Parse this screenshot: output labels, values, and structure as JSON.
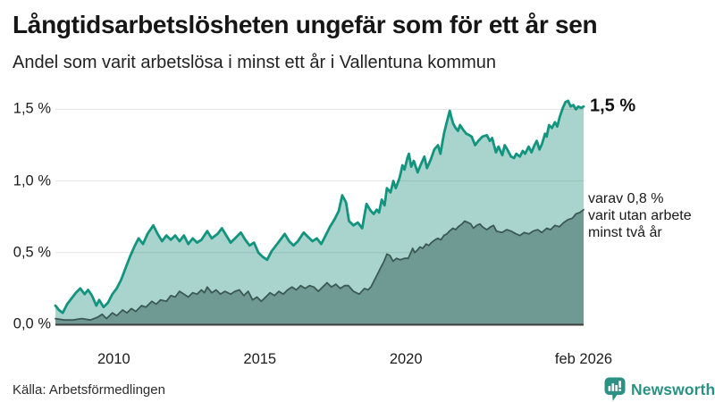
{
  "header": {
    "title": "Långtidsarbetslösheten ungefär som för ett år sen",
    "subtitle": "Andel som varit arbetslösa i minst ett år i Vallentuna kommun"
  },
  "footer": {
    "source": "Källa: Arbetsförmedlingen",
    "brand": "Newsworthy"
  },
  "colors": {
    "accent_teal": "#12947E",
    "light_fill": "#A9D4CD",
    "dark_line": "#3C5954",
    "dark_fill": "#6F9A93",
    "gridline": "rgba(60,60,60,0.14)",
    "baseline": "#3B3B3B",
    "brand_teal": "#2B9183"
  },
  "chart_data": {
    "type": "area",
    "title": "Långtidsarbetslösheten ungefär som för ett år sen",
    "subtitle": "Andel som varit arbetslösa i minst ett år i Vallentuna kommun",
    "unit": "%",
    "grid": true,
    "legend_position": "none",
    "x_domain": [
      2008.0,
      2026.083
    ],
    "y_domain": [
      0,
      1.65
    ],
    "y_ticks": [
      {
        "value": 0.0,
        "label": "0,0 %"
      },
      {
        "value": 0.5,
        "label": "0,5 %"
      },
      {
        "value": 1.0,
        "label": "1,0 %"
      },
      {
        "value": 1.5,
        "label": "1,5 %"
      }
    ],
    "x_ticks": [
      {
        "value": 2010,
        "label": "2010"
      },
      {
        "value": 2015,
        "label": "2015"
      },
      {
        "value": 2020,
        "label": "2020"
      },
      {
        "value": 2026.083,
        "label": "feb 2026"
      }
    ],
    "series": [
      {
        "name": "Andel som varit arbetslösa i minst ett år",
        "color": "#12947E",
        "fill": "#A9D4CD",
        "end_label": "1,5 %",
        "end_value": 1.5,
        "points": [
          [
            2008.0,
            0.13
          ],
          [
            2008.12,
            0.1
          ],
          [
            2008.25,
            0.08
          ],
          [
            2008.4,
            0.14
          ],
          [
            2008.55,
            0.18
          ],
          [
            2008.7,
            0.22
          ],
          [
            2008.85,
            0.25
          ],
          [
            2009.0,
            0.21
          ],
          [
            2009.12,
            0.24
          ],
          [
            2009.25,
            0.2
          ],
          [
            2009.4,
            0.13
          ],
          [
            2009.5,
            0.17
          ],
          [
            2009.65,
            0.12
          ],
          [
            2009.8,
            0.15
          ],
          [
            2009.95,
            0.21
          ],
          [
            2010.1,
            0.25
          ],
          [
            2010.25,
            0.31
          ],
          [
            2010.4,
            0.39
          ],
          [
            2010.55,
            0.47
          ],
          [
            2010.7,
            0.54
          ],
          [
            2010.85,
            0.6
          ],
          [
            2011.0,
            0.56
          ],
          [
            2011.15,
            0.63
          ],
          [
            2011.35,
            0.69
          ],
          [
            2011.5,
            0.63
          ],
          [
            2011.65,
            0.58
          ],
          [
            2011.8,
            0.62
          ],
          [
            2011.95,
            0.59
          ],
          [
            2012.1,
            0.62
          ],
          [
            2012.25,
            0.58
          ],
          [
            2012.4,
            0.62
          ],
          [
            2012.55,
            0.56
          ],
          [
            2012.7,
            0.6
          ],
          [
            2012.85,
            0.57
          ],
          [
            2013.0,
            0.59
          ],
          [
            2013.2,
            0.65
          ],
          [
            2013.35,
            0.6
          ],
          [
            2013.55,
            0.63
          ],
          [
            2013.7,
            0.67
          ],
          [
            2013.85,
            0.62
          ],
          [
            2014.0,
            0.57
          ],
          [
            2014.2,
            0.61
          ],
          [
            2014.35,
            0.64
          ],
          [
            2014.5,
            0.59
          ],
          [
            2014.65,
            0.55
          ],
          [
            2014.8,
            0.57
          ],
          [
            2014.95,
            0.5
          ],
          [
            2015.1,
            0.47
          ],
          [
            2015.25,
            0.45
          ],
          [
            2015.4,
            0.51
          ],
          [
            2015.55,
            0.55
          ],
          [
            2015.7,
            0.59
          ],
          [
            2015.85,
            0.63
          ],
          [
            2016.0,
            0.58
          ],
          [
            2016.15,
            0.55
          ],
          [
            2016.3,
            0.58
          ],
          [
            2016.5,
            0.64
          ],
          [
            2016.65,
            0.61
          ],
          [
            2016.8,
            0.58
          ],
          [
            2016.95,
            0.6
          ],
          [
            2017.1,
            0.56
          ],
          [
            2017.25,
            0.62
          ],
          [
            2017.4,
            0.68
          ],
          [
            2017.55,
            0.73
          ],
          [
            2017.7,
            0.79
          ],
          [
            2017.82,
            0.9
          ],
          [
            2017.95,
            0.85
          ],
          [
            2018.05,
            0.72
          ],
          [
            2018.2,
            0.69
          ],
          [
            2018.35,
            0.71
          ],
          [
            2018.5,
            0.67
          ],
          [
            2018.65,
            0.84
          ],
          [
            2018.8,
            0.79
          ],
          [
            2018.9,
            0.77
          ],
          [
            2019.0,
            0.8
          ],
          [
            2019.08,
            0.78
          ],
          [
            2019.17,
            0.87
          ],
          [
            2019.27,
            0.83
          ],
          [
            2019.35,
            0.95
          ],
          [
            2019.47,
            0.92
          ],
          [
            2019.57,
            1.0
          ],
          [
            2019.65,
            0.95
          ],
          [
            2019.78,
            1.02
          ],
          [
            2019.88,
            1.11
          ],
          [
            2019.95,
            1.08
          ],
          [
            2020.05,
            1.16
          ],
          [
            2020.1,
            1.19
          ],
          [
            2020.18,
            1.1
          ],
          [
            2020.27,
            1.14
          ],
          [
            2020.4,
            1.06
          ],
          [
            2020.5,
            1.11
          ],
          [
            2020.63,
            1.17
          ],
          [
            2020.72,
            1.09
          ],
          [
            2020.85,
            1.15
          ],
          [
            2020.97,
            1.22
          ],
          [
            2021.1,
            1.25
          ],
          [
            2021.18,
            1.19
          ],
          [
            2021.3,
            1.33
          ],
          [
            2021.4,
            1.41
          ],
          [
            2021.5,
            1.49
          ],
          [
            2021.56,
            1.44
          ],
          [
            2021.62,
            1.4
          ],
          [
            2021.7,
            1.37
          ],
          [
            2021.78,
            1.35
          ],
          [
            2021.85,
            1.39
          ],
          [
            2021.95,
            1.36
          ],
          [
            2022.07,
            1.33
          ],
          [
            2022.17,
            1.32
          ],
          [
            2022.25,
            1.31
          ],
          [
            2022.37,
            1.25
          ],
          [
            2022.48,
            1.28
          ],
          [
            2022.62,
            1.31
          ],
          [
            2022.77,
            1.32
          ],
          [
            2022.87,
            1.28
          ],
          [
            2022.95,
            1.3
          ],
          [
            2023.08,
            1.2
          ],
          [
            2023.17,
            1.24
          ],
          [
            2023.3,
            1.18
          ],
          [
            2023.38,
            1.25
          ],
          [
            2023.47,
            1.22
          ],
          [
            2023.6,
            1.17
          ],
          [
            2023.7,
            1.16
          ],
          [
            2023.78,
            1.19
          ],
          [
            2023.9,
            1.17
          ],
          [
            2024.0,
            1.21
          ],
          [
            2024.08,
            1.19
          ],
          [
            2024.2,
            1.24
          ],
          [
            2024.3,
            1.2
          ],
          [
            2024.4,
            1.25
          ],
          [
            2024.48,
            1.28
          ],
          [
            2024.57,
            1.22
          ],
          [
            2024.66,
            1.26
          ],
          [
            2024.76,
            1.33
          ],
          [
            2024.82,
            1.31
          ],
          [
            2024.9,
            1.39
          ],
          [
            2025.0,
            1.37
          ],
          [
            2025.1,
            1.41
          ],
          [
            2025.18,
            1.38
          ],
          [
            2025.27,
            1.45
          ],
          [
            2025.37,
            1.51
          ],
          [
            2025.46,
            1.55
          ],
          [
            2025.55,
            1.56
          ],
          [
            2025.64,
            1.52
          ],
          [
            2025.73,
            1.53
          ],
          [
            2025.82,
            1.5
          ],
          [
            2025.9,
            1.52
          ],
          [
            2026.0,
            1.51
          ],
          [
            2026.083,
            1.52
          ]
        ]
      },
      {
        "name": "varav utan arbete minst två år",
        "color": "#3C5954",
        "fill": "#6F9A93",
        "annotation_lines": [
          "varav 0,8 %",
          "varit utan arbete",
          "minst två år"
        ],
        "end_value": 0.8,
        "points": [
          [
            2008.0,
            0.04
          ],
          [
            2008.3,
            0.03
          ],
          [
            2008.6,
            0.03
          ],
          [
            2008.9,
            0.04
          ],
          [
            2009.2,
            0.03
          ],
          [
            2009.45,
            0.05
          ],
          [
            2009.6,
            0.07
          ],
          [
            2009.75,
            0.04
          ],
          [
            2009.95,
            0.08
          ],
          [
            2010.1,
            0.06
          ],
          [
            2010.3,
            0.1
          ],
          [
            2010.45,
            0.08
          ],
          [
            2010.6,
            0.11
          ],
          [
            2010.75,
            0.09
          ],
          [
            2010.95,
            0.13
          ],
          [
            2011.1,
            0.12
          ],
          [
            2011.3,
            0.16
          ],
          [
            2011.45,
            0.14
          ],
          [
            2011.6,
            0.17
          ],
          [
            2011.8,
            0.16
          ],
          [
            2011.95,
            0.2
          ],
          [
            2012.1,
            0.19
          ],
          [
            2012.25,
            0.23
          ],
          [
            2012.4,
            0.21
          ],
          [
            2012.55,
            0.19
          ],
          [
            2012.7,
            0.22
          ],
          [
            2012.85,
            0.21
          ],
          [
            2013.0,
            0.24
          ],
          [
            2013.1,
            0.22
          ],
          [
            2013.2,
            0.26
          ],
          [
            2013.35,
            0.22
          ],
          [
            2013.5,
            0.24
          ],
          [
            2013.65,
            0.21
          ],
          [
            2013.8,
            0.23
          ],
          [
            2014.0,
            0.21
          ],
          [
            2014.15,
            0.23
          ],
          [
            2014.3,
            0.24
          ],
          [
            2014.45,
            0.2
          ],
          [
            2014.6,
            0.23
          ],
          [
            2014.75,
            0.17
          ],
          [
            2014.9,
            0.19
          ],
          [
            2015.05,
            0.16
          ],
          [
            2015.2,
            0.19
          ],
          [
            2015.35,
            0.22
          ],
          [
            2015.5,
            0.2
          ],
          [
            2015.65,
            0.23
          ],
          [
            2015.8,
            0.21
          ],
          [
            2015.95,
            0.24
          ],
          [
            2016.1,
            0.26
          ],
          [
            2016.25,
            0.24
          ],
          [
            2016.4,
            0.27
          ],
          [
            2016.55,
            0.25
          ],
          [
            2016.7,
            0.27
          ],
          [
            2016.85,
            0.26
          ],
          [
            2017.0,
            0.23
          ],
          [
            2017.15,
            0.26
          ],
          [
            2017.3,
            0.29
          ],
          [
            2017.45,
            0.26
          ],
          [
            2017.6,
            0.28
          ],
          [
            2017.75,
            0.25
          ],
          [
            2017.9,
            0.27
          ],
          [
            2018.03,
            0.27
          ],
          [
            2018.2,
            0.23
          ],
          [
            2018.4,
            0.21
          ],
          [
            2018.58,
            0.25
          ],
          [
            2018.7,
            0.24
          ],
          [
            2018.8,
            0.26
          ],
          [
            2018.95,
            0.32
          ],
          [
            2019.1,
            0.38
          ],
          [
            2019.25,
            0.44
          ],
          [
            2019.35,
            0.49
          ],
          [
            2019.45,
            0.48
          ],
          [
            2019.56,
            0.44
          ],
          [
            2019.68,
            0.46
          ],
          [
            2019.8,
            0.45
          ],
          [
            2019.95,
            0.46
          ],
          [
            2020.08,
            0.46
          ],
          [
            2020.17,
            0.5
          ],
          [
            2020.23,
            0.53
          ],
          [
            2020.3,
            0.5
          ],
          [
            2020.4,
            0.52
          ],
          [
            2020.48,
            0.54
          ],
          [
            2020.58,
            0.53
          ],
          [
            2020.69,
            0.56
          ],
          [
            2020.78,
            0.55
          ],
          [
            2020.87,
            0.57
          ],
          [
            2021.0,
            0.59
          ],
          [
            2021.09,
            0.6
          ],
          [
            2021.2,
            0.59
          ],
          [
            2021.3,
            0.62
          ],
          [
            2021.4,
            0.63
          ],
          [
            2021.49,
            0.65
          ],
          [
            2021.61,
            0.67
          ],
          [
            2021.7,
            0.66
          ],
          [
            2021.79,
            0.68
          ],
          [
            2021.92,
            0.7
          ],
          [
            2022.01,
            0.72
          ],
          [
            2022.12,
            0.71
          ],
          [
            2022.22,
            0.7
          ],
          [
            2022.31,
            0.67
          ],
          [
            2022.42,
            0.69
          ],
          [
            2022.53,
            0.7
          ],
          [
            2022.62,
            0.68
          ],
          [
            2022.77,
            0.66
          ],
          [
            2022.9,
            0.68
          ],
          [
            2023.0,
            0.69
          ],
          [
            2023.1,
            0.65
          ],
          [
            2023.29,
            0.64
          ],
          [
            2023.45,
            0.66
          ],
          [
            2023.6,
            0.65
          ],
          [
            2023.78,
            0.63
          ],
          [
            2023.9,
            0.62
          ],
          [
            2024.05,
            0.64
          ],
          [
            2024.21,
            0.63
          ],
          [
            2024.35,
            0.65
          ],
          [
            2024.51,
            0.66
          ],
          [
            2024.65,
            0.64
          ],
          [
            2024.82,
            0.67
          ],
          [
            2024.95,
            0.66
          ],
          [
            2025.1,
            0.69
          ],
          [
            2025.25,
            0.68
          ],
          [
            2025.4,
            0.71
          ],
          [
            2025.55,
            0.73
          ],
          [
            2025.7,
            0.74
          ],
          [
            2025.82,
            0.77
          ],
          [
            2025.95,
            0.78
          ],
          [
            2026.083,
            0.8
          ]
        ]
      }
    ]
  }
}
